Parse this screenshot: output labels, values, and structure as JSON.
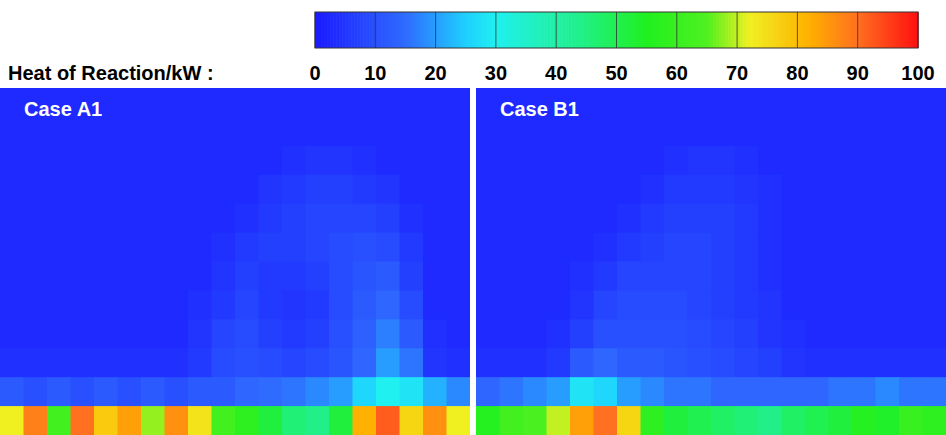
{
  "colorbar": {
    "label": "Heat of Reaction/kW :",
    "range": [
      0,
      100
    ],
    "ticks": [
      0,
      10,
      20,
      30,
      40,
      50,
      60,
      70,
      80,
      90,
      100
    ]
  },
  "chart_data": [
    {
      "type": "heatmap",
      "title": "Case A1",
      "tick_labels": false,
      "cells": [
        [
          3,
          3,
          3,
          3,
          3,
          3,
          3,
          3,
          3,
          3,
          3,
          3,
          3,
          3,
          3,
          3,
          3,
          3,
          3,
          3
        ],
        [
          3,
          3,
          3,
          3,
          3,
          3,
          3,
          3,
          3,
          3,
          3,
          3,
          3,
          3,
          3,
          3,
          3,
          3,
          3,
          3
        ],
        [
          3,
          3,
          3,
          3,
          3,
          3,
          3,
          3,
          3,
          3,
          3,
          3,
          4,
          5,
          5,
          4,
          3,
          3,
          3,
          3
        ],
        [
          3,
          3,
          3,
          3,
          3,
          3,
          3,
          3,
          3,
          3,
          3,
          5,
          6,
          7,
          7,
          6,
          5,
          3,
          3,
          3
        ],
        [
          3,
          3,
          3,
          3,
          3,
          3,
          3,
          3,
          3,
          3,
          4,
          6,
          7,
          8,
          8,
          8,
          7,
          4,
          3,
          3
        ],
        [
          3,
          3,
          3,
          3,
          3,
          3,
          3,
          3,
          3,
          4,
          6,
          7,
          7,
          8,
          9,
          10,
          9,
          6,
          3,
          3
        ],
        [
          3,
          3,
          3,
          3,
          3,
          3,
          3,
          3,
          3,
          5,
          7,
          6,
          6,
          7,
          9,
          11,
          12,
          7,
          3,
          3
        ],
        [
          3,
          3,
          3,
          3,
          3,
          3,
          3,
          3,
          4,
          6,
          8,
          6,
          5,
          6,
          9,
          12,
          14,
          9,
          3,
          3
        ],
        [
          3,
          3,
          3,
          3,
          3,
          3,
          3,
          3,
          5,
          8,
          9,
          7,
          6,
          7,
          10,
          13,
          17,
          12,
          4,
          3
        ],
        [
          4,
          4,
          4,
          4,
          4,
          4,
          4,
          4,
          6,
          9,
          10,
          9,
          8,
          9,
          11,
          14,
          20,
          16,
          5,
          4
        ],
        [
          12,
          10,
          12,
          10,
          12,
          10,
          12,
          10,
          12,
          12,
          14,
          15,
          16,
          18,
          20,
          26,
          30,
          28,
          22,
          18
        ],
        [
          72,
          88,
          62,
          90,
          78,
          84,
          68,
          86,
          74,
          62,
          58,
          52,
          46,
          44,
          52,
          82,
          92,
          76,
          86,
          72
        ]
      ]
    },
    {
      "type": "heatmap",
      "title": "Case B1",
      "tick_labels": false,
      "cells": [
        [
          3,
          3,
          3,
          3,
          3,
          3,
          3,
          3,
          3,
          3,
          3,
          3,
          3,
          3,
          3,
          3,
          3,
          3,
          3,
          3
        ],
        [
          3,
          3,
          3,
          3,
          3,
          3,
          3,
          3,
          3,
          3,
          3,
          3,
          3,
          3,
          3,
          3,
          3,
          3,
          3,
          3
        ],
        [
          3,
          3,
          3,
          3,
          3,
          3,
          3,
          3,
          4,
          5,
          5,
          4,
          3,
          3,
          3,
          3,
          3,
          3,
          3,
          3
        ],
        [
          3,
          3,
          3,
          3,
          3,
          3,
          3,
          4,
          6,
          6,
          6,
          5,
          4,
          3,
          3,
          3,
          3,
          3,
          3,
          3
        ],
        [
          3,
          3,
          3,
          3,
          3,
          3,
          4,
          6,
          7,
          7,
          7,
          6,
          4,
          3,
          3,
          3,
          3,
          3,
          3,
          3
        ],
        [
          3,
          3,
          3,
          3,
          3,
          4,
          6,
          7,
          8,
          8,
          7,
          6,
          4,
          3,
          3,
          3,
          3,
          3,
          3,
          3
        ],
        [
          3,
          3,
          3,
          3,
          4,
          6,
          8,
          8,
          8,
          8,
          7,
          6,
          4,
          3,
          3,
          3,
          3,
          3,
          3,
          3
        ],
        [
          3,
          3,
          3,
          3,
          5,
          8,
          9,
          9,
          9,
          8,
          7,
          6,
          5,
          3,
          3,
          3,
          3,
          3,
          3,
          3
        ],
        [
          3,
          3,
          3,
          4,
          7,
          10,
          10,
          10,
          10,
          9,
          8,
          7,
          5,
          4,
          3,
          3,
          3,
          3,
          3,
          3
        ],
        [
          4,
          4,
          4,
          6,
          12,
          14,
          12,
          12,
          11,
          10,
          9,
          8,
          7,
          5,
          4,
          4,
          4,
          4,
          4,
          4
        ],
        [
          14,
          16,
          18,
          20,
          28,
          26,
          20,
          18,
          16,
          16,
          14,
          14,
          14,
          14,
          14,
          16,
          16,
          18,
          16,
          16
        ],
        [
          56,
          62,
          64,
          70,
          84,
          90,
          76,
          58,
          52,
          50,
          48,
          46,
          44,
          48,
          50,
          52,
          56,
          54,
          60,
          58
        ]
      ]
    }
  ]
}
